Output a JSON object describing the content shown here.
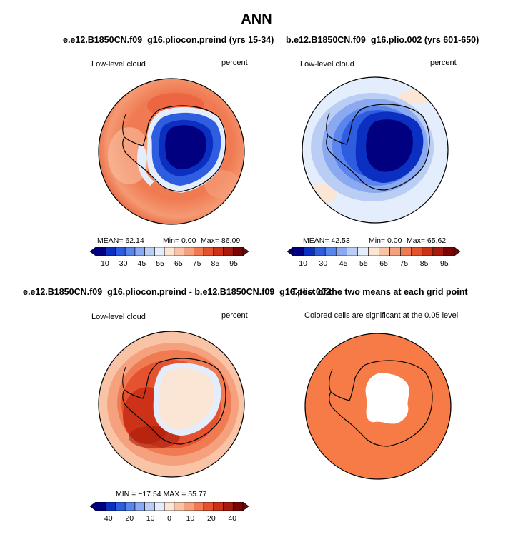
{
  "title": "ANN",
  "colors": {
    "abs": [
      "#000080",
      "#0a2fc1",
      "#2f5de0",
      "#5a85ec",
      "#8aa9f0",
      "#b9cdf5",
      "#e3edfb",
      "#fbe5d5",
      "#f9c4a6",
      "#f6a17d",
      "#f07a52",
      "#e55230",
      "#cd3218",
      "#a81a0c",
      "#7a0303"
    ],
    "diff": [
      "#000080",
      "#0a2fc1",
      "#2f5de0",
      "#5a85ec",
      "#8aa9f0",
      "#b9cdf5",
      "#e3edfb",
      "#fbe5d5",
      "#f9c4a6",
      "#f6a17d",
      "#f07a52",
      "#e55230",
      "#cd3218",
      "#a81a0c",
      "#7a0303"
    ],
    "signif": "#f77b46"
  },
  "chart_data": [
    {
      "type": "heatmap",
      "title": "e.e12.B1850CN.f09_g16.pliocon.preind (yrs 15-34)",
      "variable": "Low-level cloud",
      "units": "percent",
      "stats": {
        "mean": 62.14,
        "min": 0.0,
        "max": 86.09
      },
      "stats_text": {
        "mean": "MEAN=   62.14",
        "min": "Min=    0.00",
        "max": "Max=   86.09"
      },
      "colorbar_ticks": [
        "10",
        "30",
        "45",
        "55",
        "65",
        "75",
        "85",
        "95"
      ],
      "projection": "south-polar stereographic"
    },
    {
      "type": "heatmap",
      "title": "b.e12.B1850CN.f09_g16.plio.002 (yrs 601-650)",
      "variable": "Low-level cloud",
      "units": "percent",
      "stats": {
        "mean": 42.53,
        "min": 0.0,
        "max": 65.62
      },
      "stats_text": {
        "mean": "MEAN=   42.53",
        "min": "Min=    0.00",
        "max": "Max=   65.62"
      },
      "colorbar_ticks": [
        "10",
        "30",
        "45",
        "55",
        "65",
        "75",
        "85",
        "95"
      ],
      "projection": "south-polar stereographic"
    },
    {
      "type": "heatmap",
      "title": "e.e12.B1850CN.f09_g16.pliocon.preind - b.e12.B1850CN.f09_g16.plio.002",
      "variable": "Low-level cloud",
      "units": "percent",
      "stats": {
        "min": -17.54,
        "max": 55.77
      },
      "stats_text": "MIN = −17.54  MAX =  55.77",
      "colorbar_ticks": [
        "−40",
        "−20",
        "−10",
        "0",
        "10",
        "20",
        "40"
      ],
      "projection": "south-polar stereographic"
    },
    {
      "type": "heatmap",
      "title": "T-test of the two means at each grid point",
      "subtitle": "Colored cells are significant at the 0.05 level",
      "projection": "south-polar stereographic"
    }
  ]
}
